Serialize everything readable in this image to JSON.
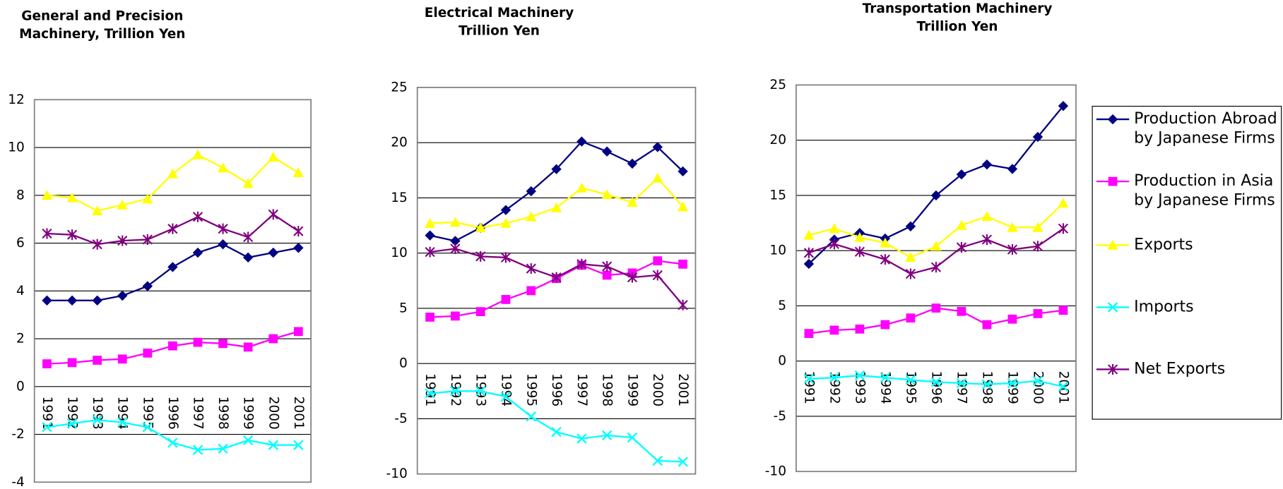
{
  "chart_data": [
    {
      "type": "line",
      "title": [
        "General and Precision",
        "Machinery, Trillion Yen"
      ],
      "categories": [
        "1991",
        "1992",
        "1993",
        "1994",
        "1995",
        "1996",
        "1997",
        "1998",
        "1999",
        "2000",
        "2001"
      ],
      "ylim": [
        -4,
        12
      ],
      "yticks": [
        -4,
        -2,
        0,
        2,
        4,
        6,
        8,
        10,
        12
      ],
      "grid": true,
      "series": [
        {
          "color": "#000080",
          "marker": "diamond",
          "values": [
            3.6,
            3.6,
            3.6,
            3.8,
            4.2,
            5.0,
            5.6,
            5.95,
            5.4,
            5.6,
            5.8
          ]
        },
        {
          "color": "#ff00ff",
          "marker": "square",
          "values": [
            0.95,
            1.0,
            1.1,
            1.15,
            1.4,
            1.7,
            1.85,
            1.8,
            1.65,
            2.0,
            2.3
          ]
        },
        {
          "color": "#ffff00",
          "marker": "triangle",
          "values": [
            8.0,
            7.9,
            7.35,
            7.6,
            7.85,
            8.9,
            9.7,
            9.15,
            8.5,
            9.6,
            8.95
          ]
        },
        {
          "color": "#00ffff",
          "marker": "x",
          "values": [
            -1.7,
            -1.55,
            -1.4,
            -1.5,
            -1.7,
            -2.35,
            -2.65,
            -2.6,
            -2.25,
            -2.45,
            -2.45
          ]
        },
        {
          "color": "#800080",
          "marker": "star",
          "values": [
            6.4,
            6.35,
            5.95,
            6.1,
            6.15,
            6.6,
            7.1,
            6.6,
            6.25,
            7.2,
            6.5
          ]
        }
      ]
    },
    {
      "type": "line",
      "title": [
        "Electrical Machinery",
        "Trillion Yen"
      ],
      "categories": [
        "1991",
        "1992",
        "1993",
        "1994",
        "1995",
        "1996",
        "1997",
        "1998",
        "1999",
        "2000",
        "2001"
      ],
      "ylim": [
        -10,
        25
      ],
      "yticks": [
        -10,
        -5,
        0,
        5,
        10,
        15,
        20,
        25
      ],
      "grid": true,
      "series": [
        {
          "color": "#000080",
          "marker": "diamond",
          "values": [
            11.6,
            11.1,
            12.3,
            13.9,
            15.6,
            17.6,
            20.1,
            19.2,
            18.1,
            19.6,
            17.4
          ]
        },
        {
          "color": "#ff00ff",
          "marker": "square",
          "values": [
            4.2,
            4.3,
            4.7,
            5.8,
            6.6,
            7.7,
            8.9,
            8.0,
            8.2,
            9.3,
            9.0
          ]
        },
        {
          "color": "#ffff00",
          "marker": "triangle",
          "values": [
            12.7,
            12.8,
            12.3,
            12.7,
            13.3,
            14.1,
            15.9,
            15.3,
            14.6,
            16.8,
            14.2
          ]
        },
        {
          "color": "#00ffff",
          "marker": "x",
          "values": [
            -2.7,
            -2.5,
            -2.5,
            -3.0,
            -4.8,
            -6.2,
            -6.8,
            -6.5,
            -6.7,
            -8.8,
            -8.9
          ]
        },
        {
          "color": "#800080",
          "marker": "star",
          "values": [
            10.1,
            10.4,
            9.7,
            9.6,
            8.6,
            7.8,
            9.0,
            8.8,
            7.8,
            8.0,
            5.3
          ]
        }
      ]
    },
    {
      "type": "line",
      "title": [
        "Transportation Machinery",
        "Trillion Yen"
      ],
      "categories": [
        "1991",
        "1992",
        "1993",
        "1994",
        "1995",
        "1996",
        "1997",
        "1998",
        "1999",
        "2000",
        "2001"
      ],
      "ylim": [
        -10,
        25
      ],
      "yticks": [
        -10,
        -5,
        0,
        5,
        10,
        15,
        20,
        25
      ],
      "grid": true,
      "legend": "right",
      "series": [
        {
          "name": "Production Abroad by Japanese Firms",
          "color": "#000080",
          "marker": "diamond",
          "values": [
            8.8,
            11.0,
            11.6,
            11.1,
            12.2,
            15.0,
            16.9,
            17.8,
            17.4,
            20.3,
            23.1
          ]
        },
        {
          "name": "Production in Asia by Japanese Firms",
          "color": "#ff00ff",
          "marker": "square",
          "values": [
            2.5,
            2.8,
            2.9,
            3.3,
            3.9,
            4.8,
            4.5,
            3.3,
            3.8,
            4.3,
            4.6
          ]
        },
        {
          "name": "Exports",
          "color": "#ffff00",
          "marker": "triangle",
          "values": [
            11.4,
            12.0,
            11.2,
            10.7,
            9.4,
            10.4,
            12.3,
            13.1,
            12.1,
            12.1,
            14.3
          ]
        },
        {
          "name": "Imports",
          "color": "#00ffff",
          "marker": "x",
          "values": [
            -1.6,
            -1.5,
            -1.3,
            -1.5,
            -1.7,
            -1.9,
            -2.0,
            -2.1,
            -2.0,
            -1.8,
            -2.3
          ]
        },
        {
          "name": "Net Exports",
          "color": "#800080",
          "marker": "star",
          "values": [
            9.8,
            10.6,
            9.9,
            9.2,
            7.9,
            8.5,
            10.3,
            11.0,
            10.1,
            10.4,
            12.0
          ]
        }
      ]
    }
  ]
}
